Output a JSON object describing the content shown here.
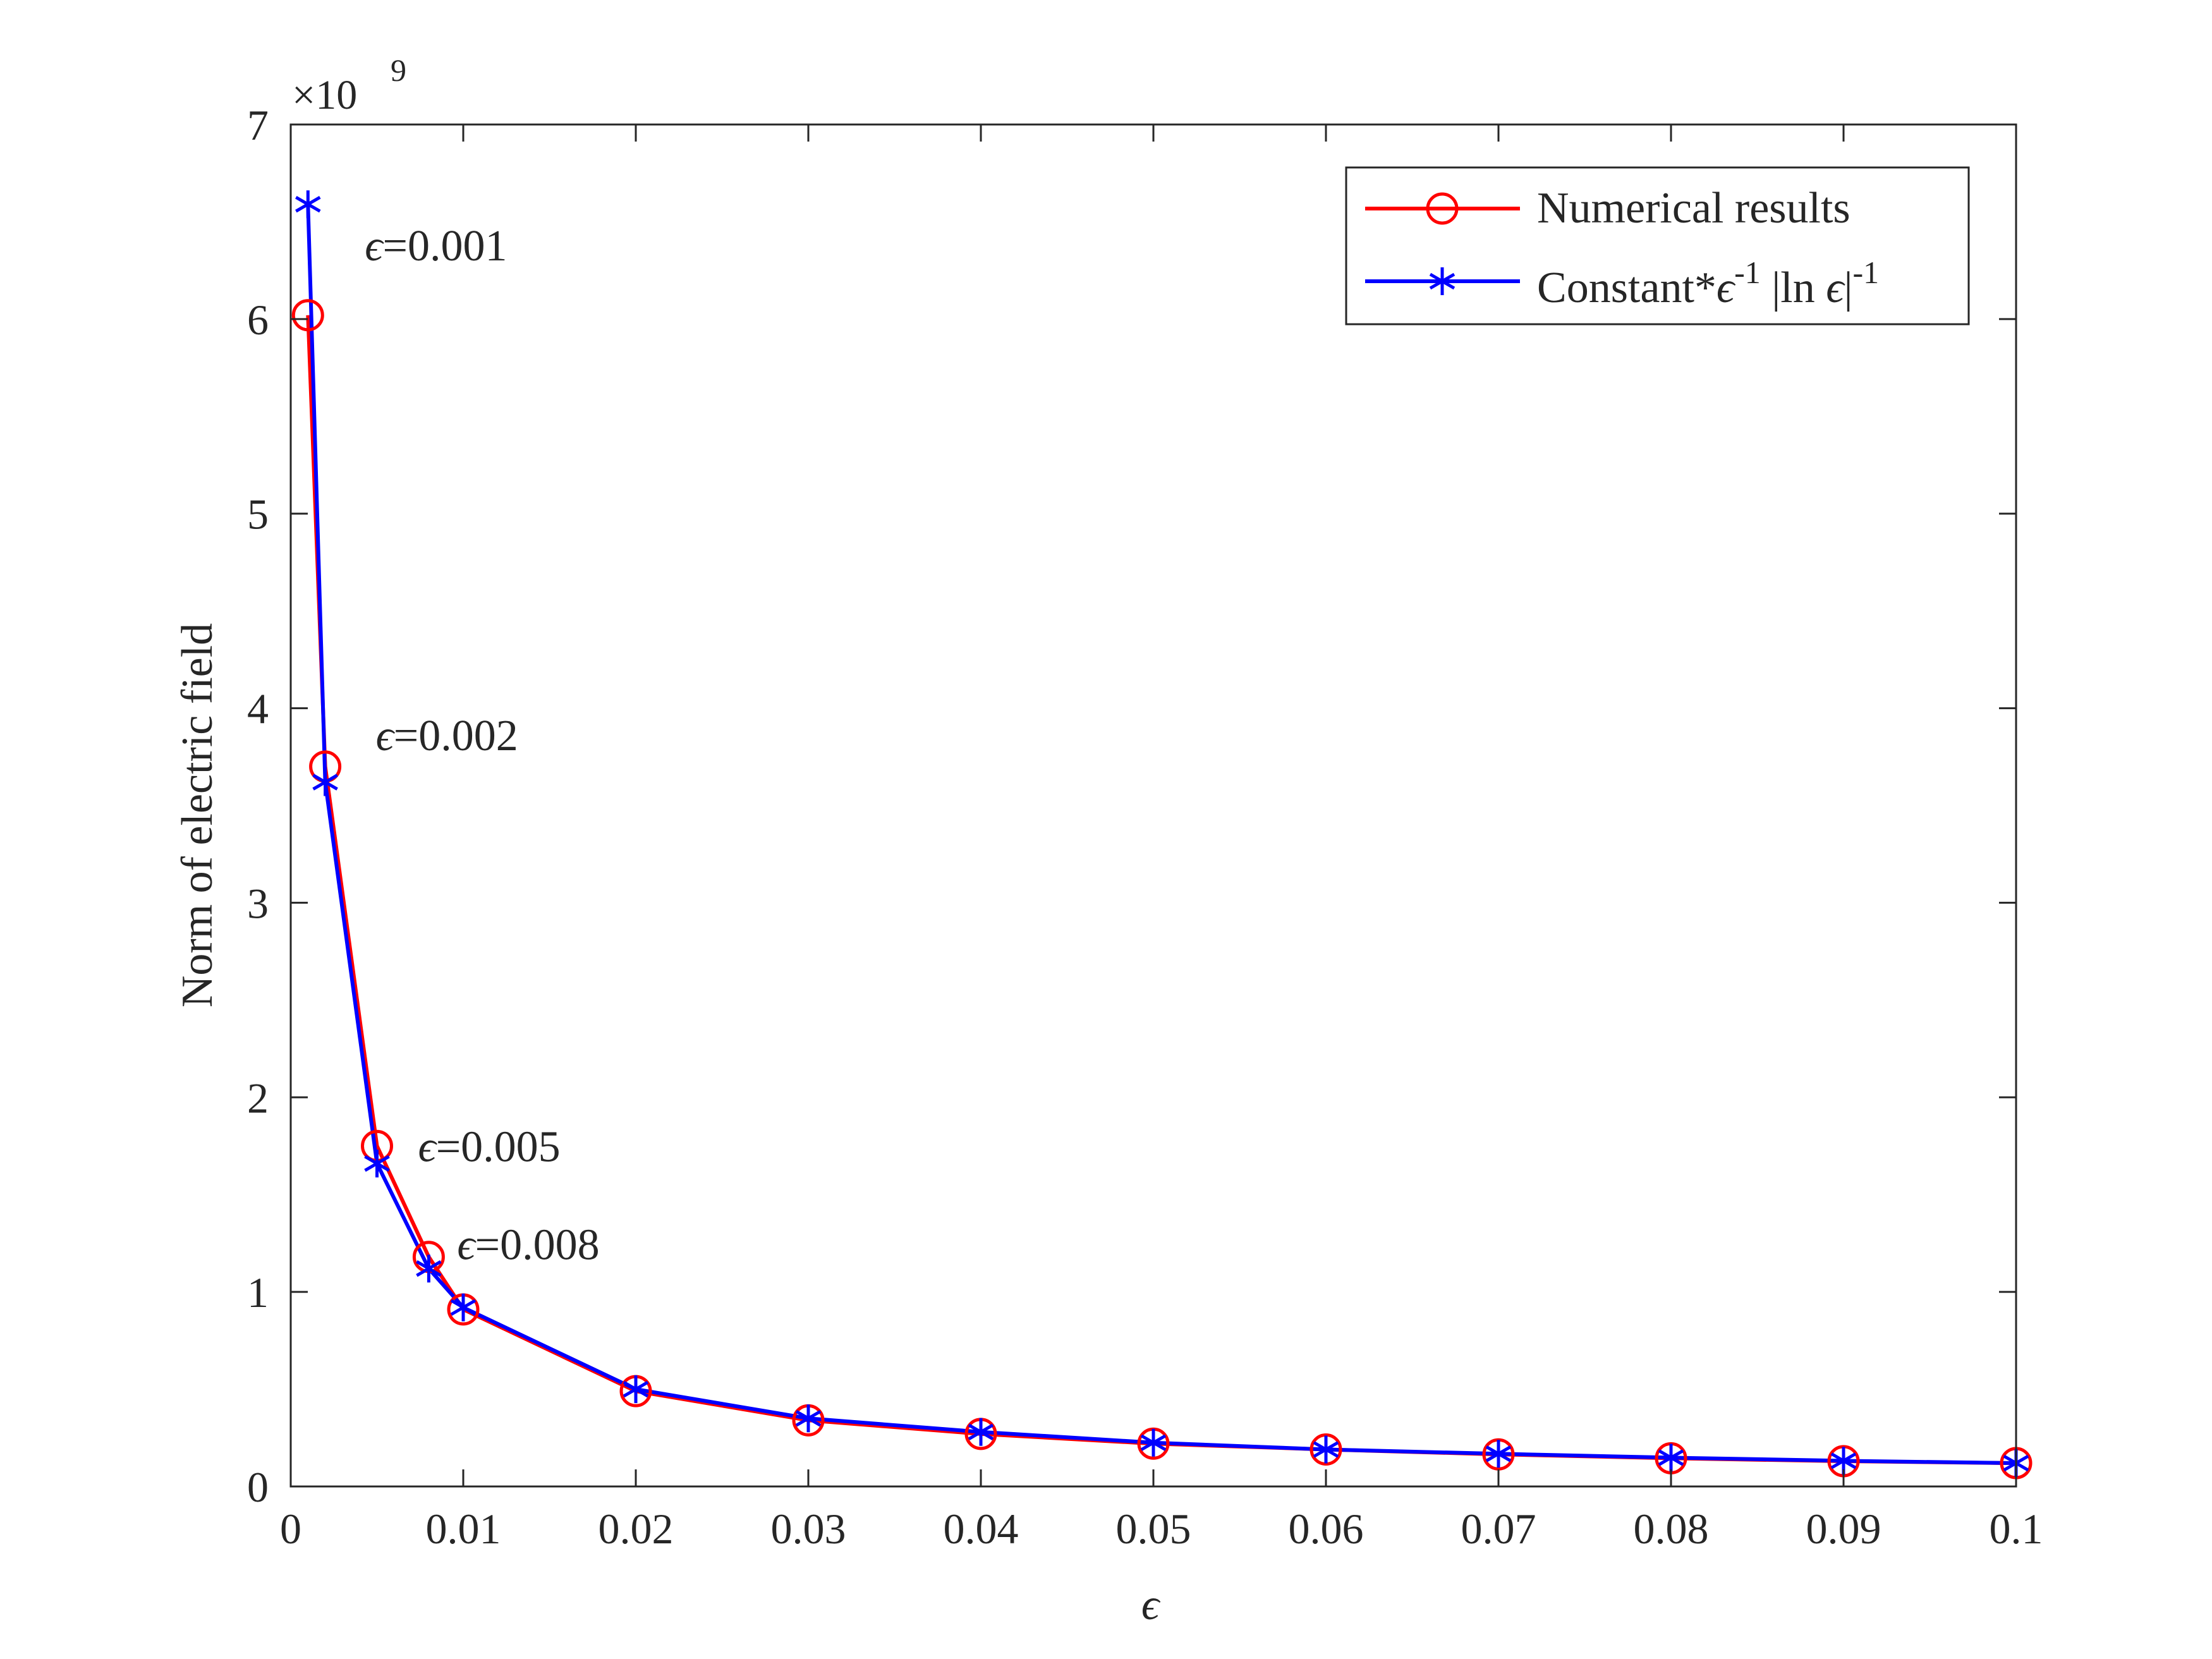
{
  "chart_data": {
    "type": "line",
    "title": "",
    "xlabel": "ϵ",
    "ylabel": "Norm of electric field",
    "y_exponent_label": "×10",
    "y_exponent_power": "9",
    "xlim": [
      0,
      0.1
    ],
    "ylim": [
      0,
      7
    ],
    "xticks": [
      0,
      0.01,
      0.02,
      0.03,
      0.04,
      0.05,
      0.06,
      0.07,
      0.08,
      0.09,
      0.1
    ],
    "xtick_labels": [
      "0",
      "0.01",
      "0.02",
      "0.03",
      "0.04",
      "0.05",
      "0.06",
      "0.07",
      "0.08",
      "0.09",
      "0.1"
    ],
    "yticks": [
      0,
      1,
      2,
      3,
      4,
      5,
      6,
      7
    ],
    "ytick_labels": [
      "0",
      "1",
      "2",
      "3",
      "4",
      "5",
      "6",
      "7"
    ],
    "grid": false,
    "legend_position": "top-right",
    "x": [
      0.001,
      0.002,
      0.005,
      0.008,
      0.01,
      0.02,
      0.03,
      0.04,
      0.05,
      0.06,
      0.07,
      0.08,
      0.09,
      0.1
    ],
    "series": [
      {
        "name": "Numerical results",
        "color": "#ff0000",
        "marker": "circle",
        "values": [
          6.02,
          3.7,
          1.75,
          1.18,
          0.91,
          0.49,
          0.34,
          0.27,
          0.22,
          0.19,
          0.165,
          0.145,
          0.13,
          0.12
        ]
      },
      {
        "name_parts": [
          "Constant*",
          "ϵ",
          "-1",
          " |ln ",
          "ϵ",
          "|",
          "-1"
        ],
        "color": "#0000ff",
        "marker": "asterisk",
        "values": [
          6.59,
          3.62,
          1.66,
          1.12,
          0.92,
          0.5,
          0.35,
          0.28,
          0.225,
          0.19,
          0.168,
          0.148,
          0.132,
          0.12
        ]
      }
    ],
    "annotations": [
      {
        "sym": "ϵ",
        "text": "=0.001",
        "x": 0.001
      },
      {
        "sym": "ϵ",
        "text": "=0.002",
        "x": 0.002
      },
      {
        "sym": "ϵ",
        "text": "=0.005",
        "x": 0.005
      },
      {
        "sym": "ϵ",
        "text": "=0.008",
        "x": 0.008
      }
    ]
  }
}
